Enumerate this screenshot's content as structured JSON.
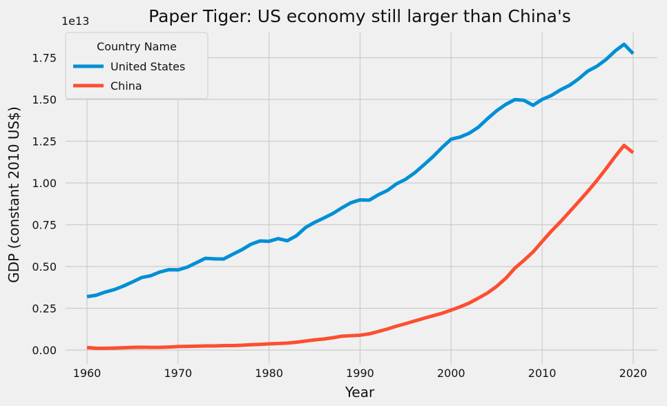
{
  "chart_data": {
    "type": "line",
    "title": "Paper Tiger: US economy still larger than China's",
    "xlabel": "Year",
    "ylabel": "GDP (constant 2010 US$)",
    "y_offset_label": "1e13",
    "xlim": [
      1960,
      2020
    ],
    "ylim": [
      0,
      1.83
    ],
    "x_ticks": [
      1960,
      1970,
      1980,
      1990,
      2000,
      2010,
      2020
    ],
    "y_ticks": [
      0.0,
      0.25,
      0.5,
      0.75,
      1.0,
      1.25,
      1.5,
      1.75
    ],
    "y_tick_labels": [
      "0.00",
      "0.25",
      "0.50",
      "0.75",
      "1.00",
      "1.25",
      "1.50",
      "1.75"
    ],
    "grid": true,
    "legend_title": "Country Name",
    "legend_position": "top-left",
    "x": [
      1960,
      1961,
      1962,
      1963,
      1964,
      1965,
      1966,
      1967,
      1968,
      1969,
      1970,
      1971,
      1972,
      1973,
      1974,
      1975,
      1976,
      1977,
      1978,
      1979,
      1980,
      1981,
      1982,
      1983,
      1984,
      1985,
      1986,
      1987,
      1988,
      1989,
      1990,
      1991,
      1992,
      1993,
      1994,
      1995,
      1996,
      1997,
      1998,
      1999,
      2000,
      2001,
      2002,
      2003,
      2004,
      2005,
      2006,
      2007,
      2008,
      2009,
      2010,
      2011,
      2012,
      2013,
      2014,
      2015,
      2016,
      2017,
      2018,
      2019,
      2020
    ],
    "series": [
      {
        "name": "United States",
        "color": "#008fd5",
        "values": [
          0.32,
          0.328,
          0.347,
          0.362,
          0.383,
          0.408,
          0.434,
          0.445,
          0.467,
          0.481,
          0.48,
          0.496,
          0.522,
          0.549,
          0.546,
          0.545,
          0.573,
          0.6,
          0.633,
          0.653,
          0.651,
          0.667,
          0.654,
          0.684,
          0.733,
          0.764,
          0.79,
          0.817,
          0.851,
          0.882,
          0.899,
          0.897,
          0.929,
          0.955,
          0.995,
          1.022,
          1.061,
          1.108,
          1.157,
          1.212,
          1.262,
          1.275,
          1.298,
          1.334,
          1.385,
          1.432,
          1.47,
          1.499,
          1.495,
          1.465,
          1.5,
          1.523,
          1.557,
          1.584,
          1.623,
          1.669,
          1.698,
          1.738,
          1.789,
          1.83,
          1.774
        ]
      },
      {
        "name": "China",
        "color": "#fc4f30",
        "values": [
          0.015,
          0.011,
          0.011,
          0.012,
          0.014,
          0.016,
          0.017,
          0.016,
          0.016,
          0.018,
          0.021,
          0.022,
          0.023,
          0.025,
          0.025,
          0.027,
          0.027,
          0.029,
          0.032,
          0.034,
          0.037,
          0.039,
          0.042,
          0.047,
          0.054,
          0.061,
          0.066,
          0.074,
          0.083,
          0.086,
          0.089,
          0.097,
          0.111,
          0.126,
          0.143,
          0.158,
          0.174,
          0.19,
          0.205,
          0.22,
          0.239,
          0.259,
          0.282,
          0.311,
          0.342,
          0.381,
          0.429,
          0.49,
          0.537,
          0.587,
          0.65,
          0.711,
          0.767,
          0.827,
          0.887,
          0.949,
          1.014,
          1.084,
          1.157,
          1.225,
          1.181
        ]
      }
    ]
  }
}
